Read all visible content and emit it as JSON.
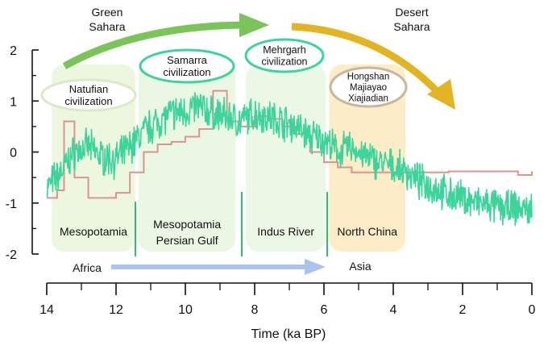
{
  "chart_data": {
    "type": "line",
    "xlabel": "Time (ka BP)",
    "ylabel": "",
    "xlim": [
      14,
      0
    ],
    "ylim": [
      -2,
      2
    ],
    "x_ticks": [
      "14",
      "12",
      "10",
      "8",
      "6",
      "4",
      "2",
      "0"
    ],
    "y_ticks": [
      "2",
      "1",
      "0",
      "-1",
      "-2"
    ],
    "series": [
      {
        "name": "",
        "color": "#3dd49b",
        "x": [
          14.0,
          13.6,
          13.2,
          12.8,
          12.4,
          12.0,
          11.6,
          11.2,
          10.8,
          10.4,
          10.0,
          9.6,
          9.2,
          8.8,
          8.4,
          8.0,
          7.6,
          7.2,
          6.8,
          6.4,
          6.0,
          5.6,
          5.2,
          4.8,
          4.4,
          4.0,
          3.6,
          3.2,
          2.8,
          2.4,
          2.0,
          1.6,
          1.2,
          0.8,
          0.4,
          0.0
        ],
        "y": [
          -0.7,
          -0.4,
          0.0,
          0.1,
          -0.1,
          -0.15,
          0.1,
          0.4,
          0.6,
          0.75,
          0.8,
          0.9,
          0.75,
          0.7,
          0.6,
          0.75,
          0.7,
          0.6,
          0.5,
          0.3,
          0.25,
          0.0,
          0.1,
          -0.1,
          -0.2,
          -0.3,
          -0.4,
          -0.6,
          -0.7,
          -0.85,
          -0.9,
          -1.0,
          -1.05,
          -1.1,
          -1.1,
          -1.15
        ]
      },
      {
        "name": "",
        "color": "#d9958f",
        "x": [
          14.0,
          13.7,
          13.5,
          13.2,
          12.8,
          12.4,
          12.0,
          11.6,
          11.2,
          10.8,
          10.4,
          10.0,
          9.6,
          9.2,
          8.8,
          8.4,
          8.0,
          7.6,
          7.2,
          6.8,
          6.4,
          6.0,
          5.6,
          5.2,
          4.8,
          4.4,
          4.0,
          3.6,
          3.2,
          2.8,
          2.4,
          2.0,
          1.6,
          1.2,
          0.8,
          0.4,
          0.0
        ],
        "y": [
          -0.9,
          -0.75,
          0.6,
          -0.5,
          -0.9,
          -0.9,
          -0.8,
          -0.4,
          0.0,
          0.15,
          0.2,
          0.3,
          0.45,
          1.2,
          0.6,
          0.5,
          0.7,
          0.65,
          0.5,
          0.35,
          0.0,
          -0.2,
          -0.3,
          -0.4,
          -0.4,
          -0.4,
          -0.4,
          -0.4,
          -0.4,
          -0.4,
          -0.38,
          -0.38,
          -0.38,
          -0.38,
          -0.38,
          -0.45,
          -0.38
        ]
      }
    ],
    "regions": [
      {
        "label": "Mesopotamia",
        "bubble": "Natufian\ncivilization",
        "x_from": 13.9,
        "x_to": 11.4,
        "color": "#edf7df",
        "bubble_border": "#dde8c8"
      },
      {
        "label": "Mesopotamia\nPersian Gulf",
        "bubble": "Samarra\ncivilization",
        "x_from": 11.4,
        "x_to": 8.5,
        "color": "#eaf8e3",
        "bubble_border": "#3dd49b"
      },
      {
        "label": "Indus River",
        "bubble": "Mehrgarh\ncivilization",
        "x_from": 8.3,
        "x_to": 5.9,
        "color": "#ebf8e6",
        "bubble_border": "#3dd49b"
      },
      {
        "label": "North China",
        "bubble": "Hongshan\nMajiayao\nXiajiadian",
        "x_from": 5.9,
        "x_to": 3.6,
        "color": "#fdecc8",
        "bubble_border": "#c9b79c"
      }
    ],
    "annotations": {
      "green_sahara": "Green\nSahara",
      "desert_sahara": "Desert\nSahara",
      "africa": "Africa",
      "asia": "Asia",
      "green_arrow_color": "#7ac45a",
      "desert_arrow_color": "#e2b424",
      "migration_arrow_color": "#a9c4e8"
    },
    "grid": false,
    "legend": "none"
  }
}
